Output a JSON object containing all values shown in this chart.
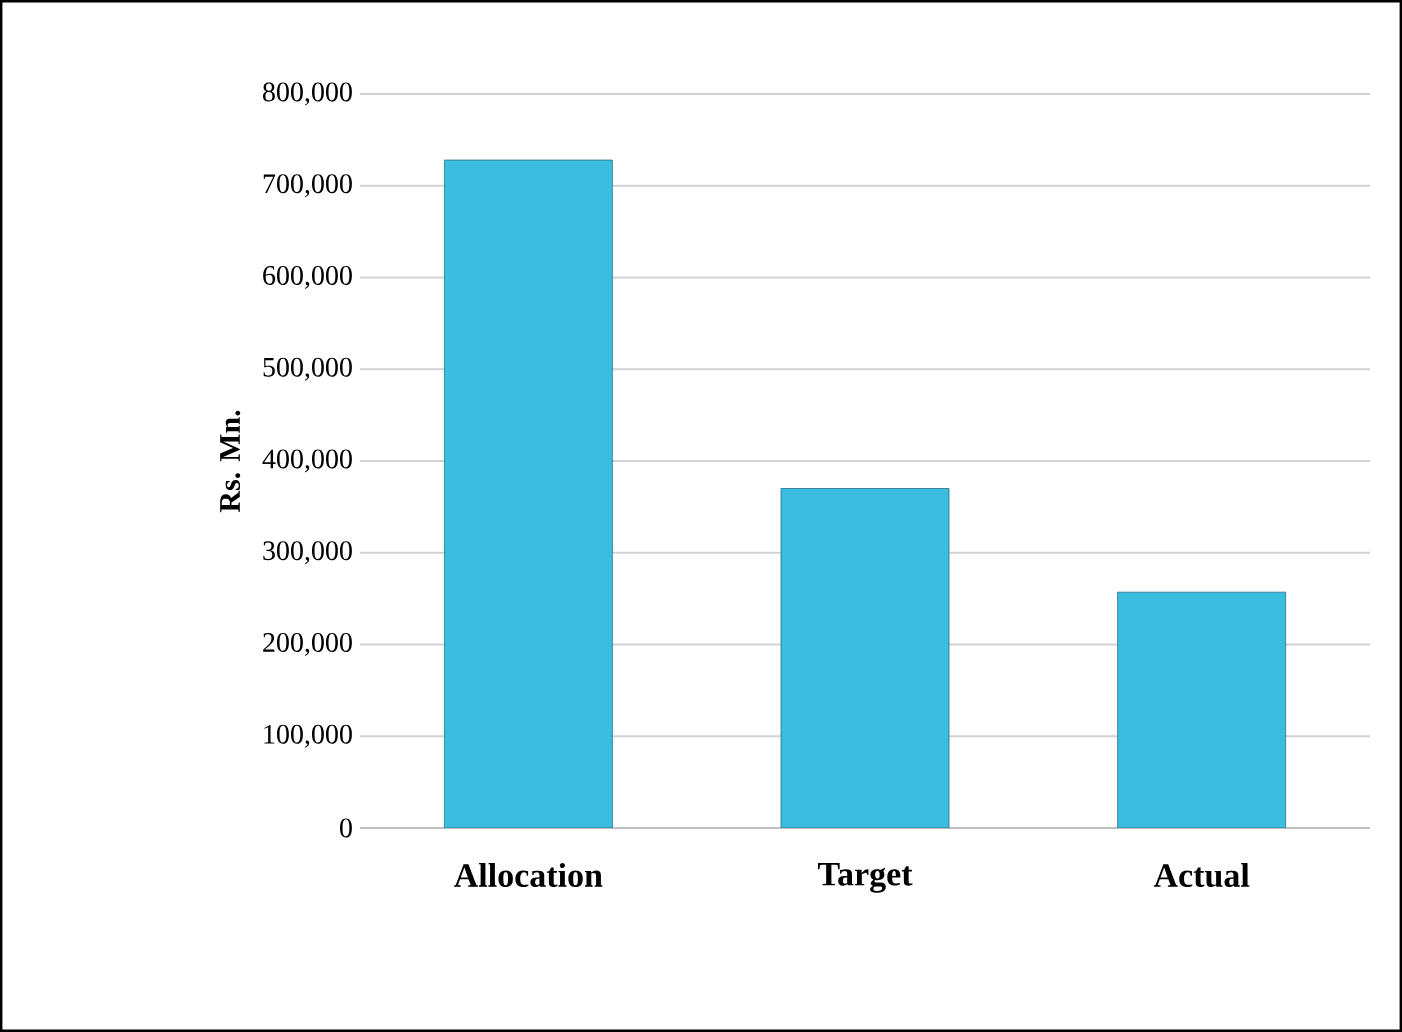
{
  "chart_data": {
    "type": "bar",
    "ylabel": "Rs. Mn.",
    "categories": [
      "Allocation",
      "Target",
      "Actual"
    ],
    "values": [
      728000,
      370000,
      257000
    ],
    "color": "#3bbde0",
    "ylim": [
      0,
      800000
    ],
    "yticks": [
      {
        "value": 0,
        "label": "0"
      },
      {
        "value": 100000,
        "label": "100,000"
      },
      {
        "value": 200000,
        "label": "200,000"
      },
      {
        "value": 300000,
        "label": "300,000"
      },
      {
        "value": 400000,
        "label": "400,000"
      },
      {
        "value": 500000,
        "label": "500,000"
      },
      {
        "value": 600000,
        "label": "600,000"
      },
      {
        "value": 700000,
        "label": "700,000"
      },
      {
        "value": 800000,
        "label": "800,000"
      }
    ],
    "grid": "y"
  }
}
